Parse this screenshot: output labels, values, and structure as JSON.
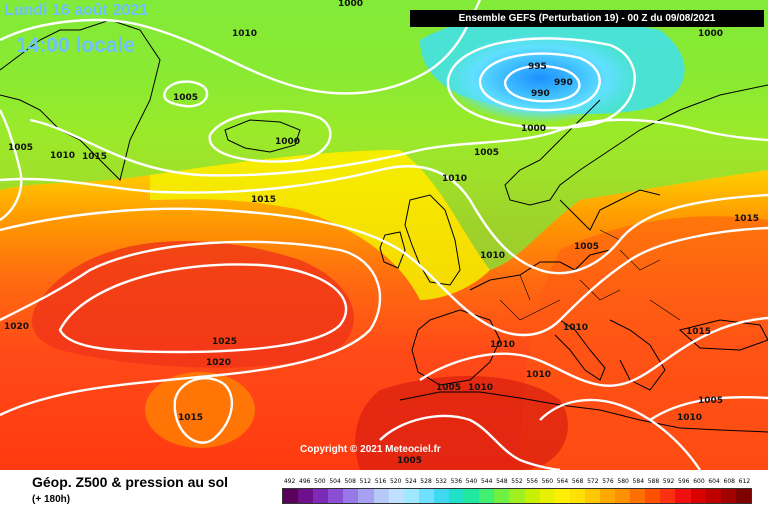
{
  "header": {
    "date": "Lundi 16 août 2021",
    "local_time": "14:00 locale",
    "run_info": "Ensemble GEFS  (Perturbation 19)  -  00 Z du 09/08/2021"
  },
  "map": {
    "copyright": "Copyright © 2021 Meteociel.fr",
    "coastline_color": "#000000",
    "isobar_color": "#ffffff",
    "isobar_labels": [
      {
        "text": "1010"
      },
      {
        "text": "1000"
      },
      {
        "text": "1000"
      },
      {
        "text": "1005"
      },
      {
        "text": "995"
      },
      {
        "text": "990"
      },
      {
        "text": "990"
      },
      {
        "text": "1005"
      },
      {
        "text": "1010"
      },
      {
        "text": "1015"
      },
      {
        "text": "1000"
      },
      {
        "text": "1000"
      },
      {
        "text": "1005"
      },
      {
        "text": "1015"
      },
      {
        "text": "1010"
      },
      {
        "text": "1005"
      },
      {
        "text": "1015"
      },
      {
        "text": "1020"
      },
      {
        "text": "1025"
      },
      {
        "text": "1020"
      },
      {
        "text": "1015"
      },
      {
        "text": "1010"
      },
      {
        "text": "1010"
      },
      {
        "text": "1015"
      },
      {
        "text": "1005"
      },
      {
        "text": "1010"
      },
      {
        "text": "1010"
      },
      {
        "text": "1005"
      },
      {
        "text": "1010"
      },
      {
        "text": "1005"
      },
      {
        "text": "1010"
      }
    ]
  },
  "footer": {
    "title": "Géop. Z500 & pression au sol",
    "lead_time": "(+ 180h)"
  },
  "legend": {
    "ticks": [
      "492",
      "496",
      "500",
      "504",
      "508",
      "512",
      "516",
      "520",
      "524",
      "528",
      "532",
      "536",
      "540",
      "544",
      "548",
      "552",
      "556",
      "560",
      "564",
      "568",
      "572",
      "576",
      "580",
      "584",
      "588",
      "592",
      "596",
      "600",
      "604",
      "608",
      "612"
    ],
    "colors": [
      "#5a005a",
      "#6e0f8c",
      "#7d2bb4",
      "#8a4fd2",
      "#9878e6",
      "#a8a0f0",
      "#b8c8f8",
      "#c0e0ff",
      "#a0e8ff",
      "#70e0ff",
      "#40d8f0",
      "#20e0c8",
      "#20e8a0",
      "#40f070",
      "#70f040",
      "#a0f020",
      "#c8f000",
      "#e8f000",
      "#fff000",
      "#ffe000",
      "#ffc800",
      "#ffa800",
      "#ff9000",
      "#ff7000",
      "#ff5000",
      "#ff3010",
      "#f01010",
      "#d80000",
      "#c00000",
      "#a00000",
      "#800000"
    ]
  }
}
